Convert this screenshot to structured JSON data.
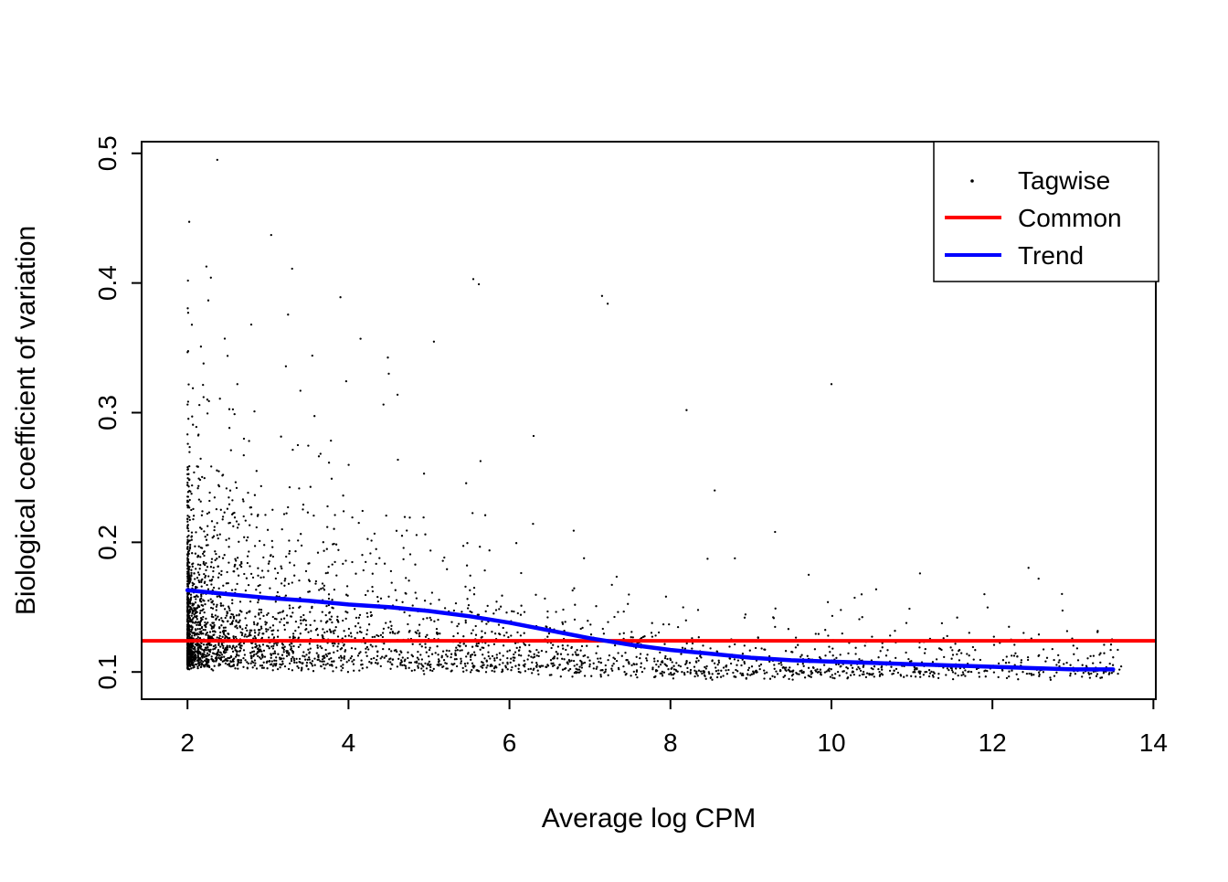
{
  "figure": {
    "background": "#ffffff"
  },
  "chart_data": {
    "type": "scatter",
    "title": "",
    "xlabel": "Average log CPM",
    "ylabel": "Biological coefficient of variation",
    "xlim": [
      1.43,
      14.03
    ],
    "ylim": [
      0.079,
      0.509
    ],
    "x_ticks": [
      2,
      4,
      6,
      8,
      10,
      12,
      14
    ],
    "y_ticks": [
      0.1,
      0.2,
      0.3,
      0.4,
      0.5
    ],
    "grid": false,
    "legend": {
      "position": "top-right",
      "entries": [
        {
          "label": "Tagwise",
          "type": "point",
          "color": "#000000"
        },
        {
          "label": "Common",
          "type": "line",
          "color": "#FF0000"
        },
        {
          "label": "Trend",
          "type": "line",
          "color": "#0000FF"
        }
      ]
    },
    "common_line": {
      "bcv": 0.124,
      "color": "#FF0000",
      "extent": "full-width"
    },
    "trend_line": {
      "color": "#0000FF",
      "points": [
        [
          2.0,
          0.163
        ],
        [
          2.5,
          0.16
        ],
        [
          3.0,
          0.157
        ],
        [
          3.5,
          0.155
        ],
        [
          4.0,
          0.152
        ],
        [
          4.5,
          0.15
        ],
        [
          5.0,
          0.147
        ],
        [
          5.5,
          0.143
        ],
        [
          6.0,
          0.138
        ],
        [
          6.5,
          0.132
        ],
        [
          7.0,
          0.126
        ],
        [
          7.5,
          0.121
        ],
        [
          8.0,
          0.117
        ],
        [
          8.5,
          0.114
        ],
        [
          9.0,
          0.111
        ],
        [
          9.5,
          0.109
        ],
        [
          10.0,
          0.108
        ],
        [
          10.5,
          0.107
        ],
        [
          11.0,
          0.106
        ],
        [
          11.5,
          0.105
        ],
        [
          12.0,
          0.104
        ],
        [
          12.5,
          0.103
        ],
        [
          13.0,
          0.102
        ],
        [
          13.5,
          0.102
        ]
      ]
    },
    "tagwise_points": {
      "color": "#000000",
      "marker_size_px": 1.15,
      "n_points_estimate": 3500,
      "x_range": [
        2.0,
        13.6
      ],
      "y_range": [
        0.092,
        0.497
      ],
      "density_note": "dense cloud for 2<x<7 spanning BCV ~0.10-0.25 with upper tail, narrowing to a tight band near BCV 0.10 for x>8",
      "generation": {
        "seed": 42,
        "x_power": 3,
        "x_span": 11.6,
        "scale_low_x": 0.045,
        "scale_high_x": 0.01,
        "floor_low_x": 0.105,
        "floor_high_x": 0.097,
        "outlier_prob": 0.015
      },
      "notable_outliers": [
        [
          2.37,
          0.495
        ],
        [
          3.04,
          0.437
        ],
        [
          3.3,
          0.411
        ],
        [
          3.9,
          0.389
        ],
        [
          4.15,
          0.357
        ],
        [
          3.55,
          0.344
        ],
        [
          4.5,
          0.33
        ],
        [
          2.62,
          0.322
        ],
        [
          2.2,
          0.312
        ],
        [
          5.55,
          0.403
        ],
        [
          5.62,
          0.399
        ],
        [
          7.15,
          0.39
        ],
        [
          7.22,
          0.384
        ],
        [
          10.0,
          0.322
        ],
        [
          8.2,
          0.302
        ],
        [
          6.3,
          0.282
        ],
        [
          8.55,
          0.24
        ],
        [
          9.3,
          0.208
        ],
        [
          11.1,
          0.176
        ],
        [
          11.9,
          0.16
        ]
      ]
    }
  }
}
